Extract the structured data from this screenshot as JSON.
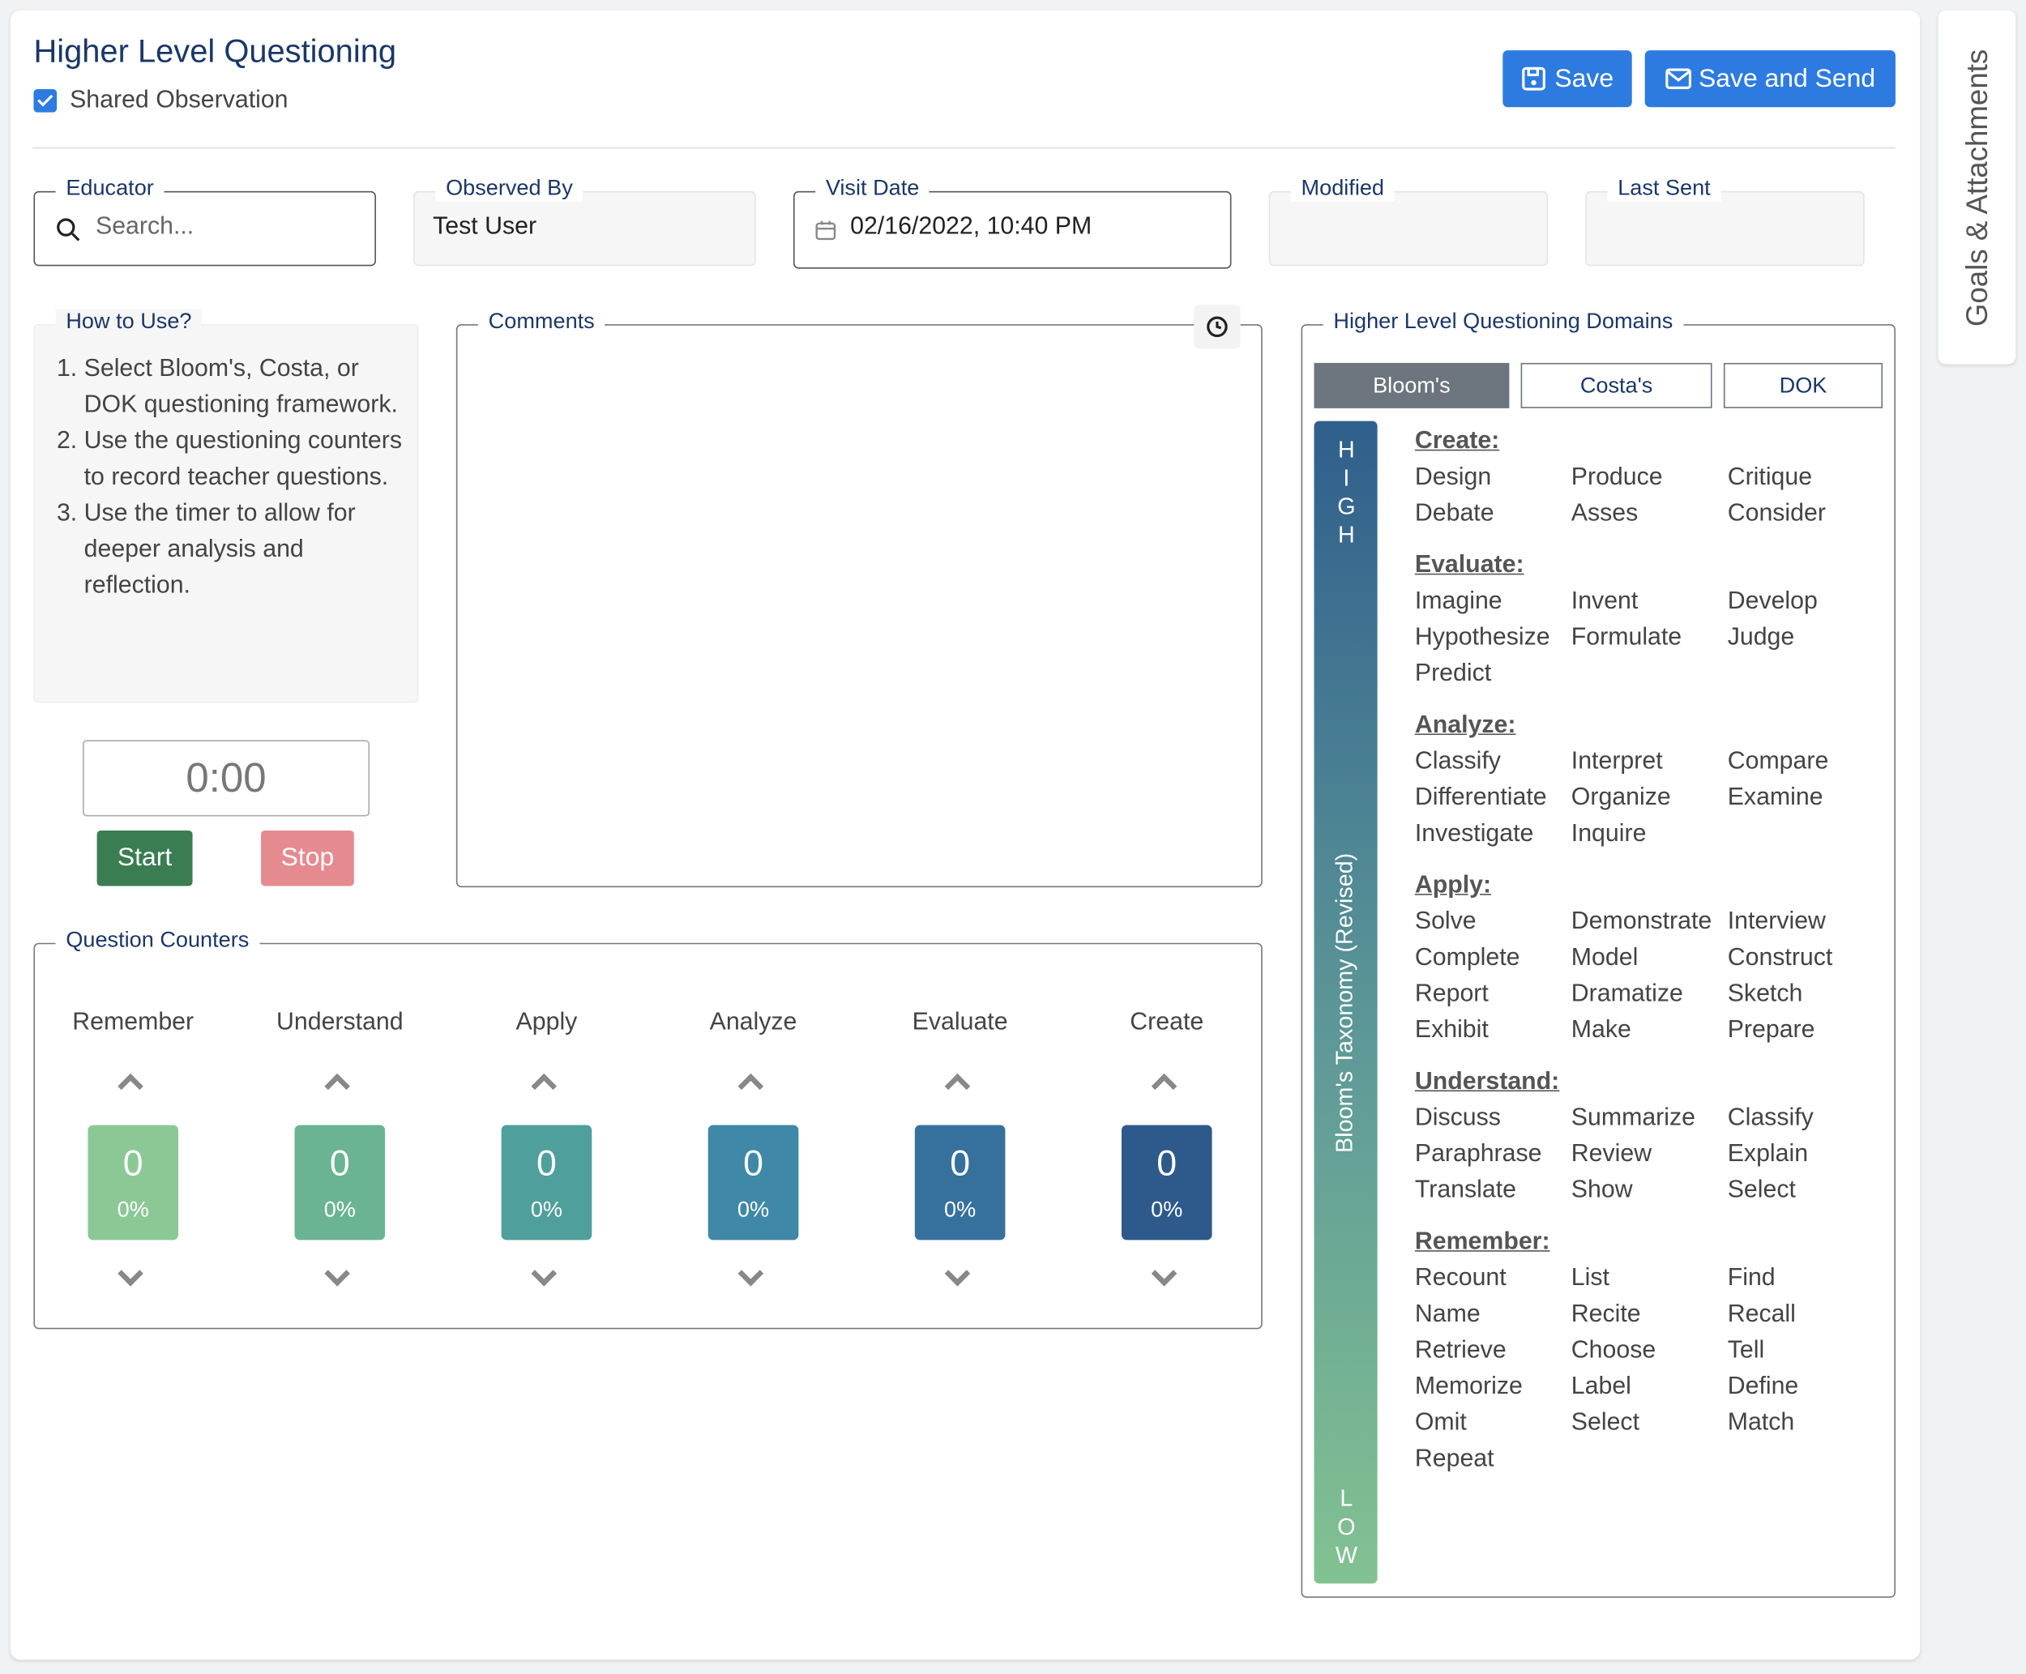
{
  "header": {
    "title": "Higher Level Questioning",
    "shared_label": "Shared Observation",
    "save": "Save",
    "save_send": "Save and Send"
  },
  "fields": [
    {
      "label": "Educator",
      "placeholder": "Search..."
    },
    {
      "label": "Observed By",
      "value": "Test User"
    },
    {
      "label": "Visit Date",
      "value": "02/16/2022, 10:40 PM"
    },
    {
      "label": "Modified"
    },
    {
      "label": "Last Sent"
    }
  ],
  "how_to": {
    "title": "How to Use?",
    "steps": [
      "Select Bloom's, Costa, or DOK questioning framework.",
      "Use the questioning counters to record teacher questions.",
      "Use the timer to allow for deeper analysis and reflection."
    ]
  },
  "timer": {
    "display": "0:00",
    "start": "Start",
    "stop": "Stop"
  },
  "comments": {
    "label": "Comments"
  },
  "counters": {
    "title": "Question Counters",
    "items": [
      {
        "name": "Remember",
        "count": 0,
        "percent": "0%",
        "color": "#8cc896"
      },
      {
        "name": "Understand",
        "count": 0,
        "percent": "0%",
        "color": "#6ab493"
      },
      {
        "name": "Apply",
        "count": 0,
        "percent": "0%",
        "color": "#4f9f9d"
      },
      {
        "name": "Analyze",
        "count": 0,
        "percent": "0%",
        "color": "#3f88a7"
      },
      {
        "name": "Evaluate",
        "count": 0,
        "percent": "0%",
        "color": "#36719d"
      },
      {
        "name": "Create",
        "count": 0,
        "percent": "0%",
        "color": "#2d5a8a"
      }
    ]
  },
  "domains": {
    "title": "Higher Level Questioning Domains",
    "tabs": [
      "Bloom's",
      "Costa's",
      "DOK"
    ],
    "scale_label": "Bloom's Taxonomy (Revised)",
    "high": "HIGH",
    "low": "LOW",
    "groups": [
      {
        "name": "Create:",
        "words": [
          "Design",
          "Produce",
          "Critique",
          "Debate",
          "Asses",
          "Consider"
        ]
      },
      {
        "name": "Evaluate:",
        "words": [
          "Imagine",
          "Invent",
          "Develop",
          "Hypothesize",
          "Formulate",
          "Judge",
          "Predict"
        ]
      },
      {
        "name": "Analyze:",
        "words": [
          "Classify",
          "Interpret",
          "Compare",
          "Differentiate",
          "Organize",
          "Examine",
          "Investigate",
          "Inquire"
        ]
      },
      {
        "name": "Apply:",
        "words": [
          "Solve",
          "Demonstrate",
          "Interview",
          "Complete",
          "Model",
          "Construct",
          "Report",
          "Dramatize",
          "Sketch",
          "Exhibit",
          "Make",
          "Prepare"
        ]
      },
      {
        "name": "Understand:",
        "words": [
          "Discuss",
          "Summarize",
          "Classify",
          "Paraphrase",
          "Review",
          "Explain",
          "Translate",
          "Show",
          "Select"
        ]
      },
      {
        "name": "Remember:",
        "words": [
          "Recount",
          "List",
          "Find",
          "Name",
          "Recite",
          "Recall",
          "Retrieve",
          "Choose",
          "Tell",
          "Memorize",
          "Label",
          "Define",
          "Omit",
          "Select",
          "Match",
          "Repeat"
        ]
      }
    ]
  },
  "side_tab": "Goals & Attachments"
}
